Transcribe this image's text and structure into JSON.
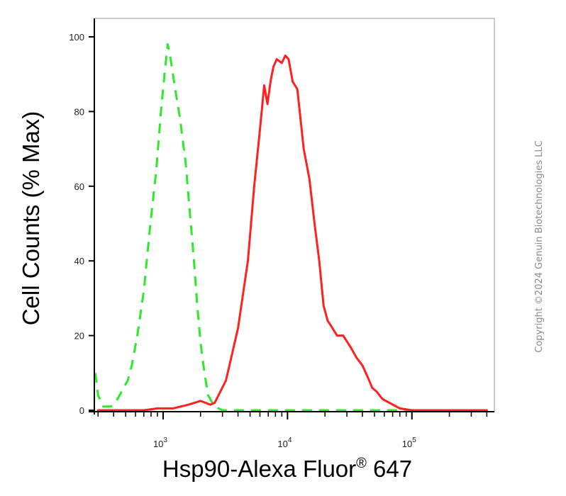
{
  "chart_data": {
    "type": "line",
    "xlabel": "Hsp90-Alexa Fluor",
    "xlabel_superscript": "®",
    "xlabel_suffix": " 647",
    "ylabel": "Cell Counts (% Max)",
    "xscale": "log",
    "xlim": [
      280,
      460000
    ],
    "ylim": [
      0,
      100
    ],
    "x_ticks": [
      {
        "base": "10",
        "exp": "3",
        "value": 1000
      },
      {
        "base": "10",
        "exp": "4",
        "value": 10000
      },
      {
        "base": "10",
        "exp": "5",
        "value": 100000
      }
    ],
    "y_ticks": [
      "0",
      "20",
      "40",
      "60",
      "80",
      "100"
    ],
    "y_tick_values": [
      0,
      20,
      40,
      60,
      80,
      100
    ],
    "grid": false,
    "legend": "none",
    "series": [
      {
        "color": "#2ee82e",
        "line_style": "dashed",
        "points": [
          [
            285,
            10
          ],
          [
            300,
            4
          ],
          [
            330,
            1
          ],
          [
            380,
            1
          ],
          [
            430,
            3
          ],
          [
            520,
            8
          ],
          [
            560,
            12
          ],
          [
            620,
            20
          ],
          [
            700,
            32
          ],
          [
            790,
            50
          ],
          [
            880,
            64
          ],
          [
            960,
            80
          ],
          [
            1040,
            92
          ],
          [
            1090,
            98
          ],
          [
            1150,
            94
          ],
          [
            1250,
            86
          ],
          [
            1370,
            78
          ],
          [
            1520,
            66
          ],
          [
            1650,
            52
          ],
          [
            1770,
            40
          ],
          [
            1880,
            28
          ],
          [
            2000,
            18
          ],
          [
            2150,
            10
          ],
          [
            2300,
            4
          ],
          [
            2600,
            1
          ],
          [
            3000,
            0
          ],
          [
            10000,
            0
          ],
          [
            100000,
            0
          ],
          [
            400000,
            0
          ]
        ]
      },
      {
        "color": "#ff2020",
        "line_style": "solid",
        "points": [
          [
            300,
            0
          ],
          [
            700,
            0
          ],
          [
            900,
            0.5
          ],
          [
            1200,
            0.5
          ],
          [
            1600,
            1.5
          ],
          [
            2000,
            2.5
          ],
          [
            2400,
            1.5
          ],
          [
            2600,
            2
          ],
          [
            3200,
            8
          ],
          [
            4000,
            22
          ],
          [
            4800,
            40
          ],
          [
            5400,
            60
          ],
          [
            6000,
            75
          ],
          [
            6500,
            87
          ],
          [
            6900,
            82
          ],
          [
            7300,
            88
          ],
          [
            7700,
            92
          ],
          [
            8200,
            94
          ],
          [
            9000,
            93
          ],
          [
            9600,
            95
          ],
          [
            10200,
            94
          ],
          [
            11000,
            88
          ],
          [
            12000,
            86
          ],
          [
            13500,
            70
          ],
          [
            15000,
            62
          ],
          [
            16500,
            50
          ],
          [
            18000,
            40
          ],
          [
            19500,
            28
          ],
          [
            21000,
            24
          ],
          [
            23000,
            22
          ],
          [
            25000,
            20
          ],
          [
            28000,
            20
          ],
          [
            32000,
            17
          ],
          [
            36000,
            14
          ],
          [
            40000,
            12
          ],
          [
            44000,
            9
          ],
          [
            48000,
            6
          ],
          [
            52000,
            5
          ],
          [
            58000,
            3
          ],
          [
            66000,
            2
          ],
          [
            80000,
            0.5
          ],
          [
            100000,
            0
          ],
          [
            400000,
            0
          ]
        ]
      }
    ]
  },
  "copyright": "Copyright ©2024 Genuin Biotechnologies LLC"
}
